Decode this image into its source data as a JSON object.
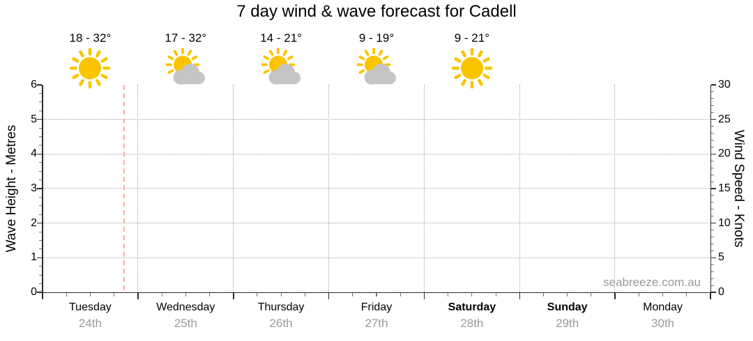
{
  "watermark": "seabreeze.com.au",
  "chart_data": {
    "type": "line",
    "title": "7 day wind & wave forecast for Cadell",
    "location": "Cadell",
    "days": [
      {
        "name": "Tuesday",
        "date": "24th",
        "weekend": false
      },
      {
        "name": "Wednesday",
        "date": "25th",
        "weekend": false
      },
      {
        "name": "Thursday",
        "date": "26th",
        "weekend": false
      },
      {
        "name": "Friday",
        "date": "27th",
        "weekend": false
      },
      {
        "name": "Saturday",
        "date": "28th",
        "weekend": true
      },
      {
        "name": "Sunday",
        "date": "29th",
        "weekend": true
      },
      {
        "name": "Monday",
        "date": "30th",
        "weekend": false
      }
    ],
    "forecast_header": [
      {
        "day": "Tuesday",
        "temp_range": "18 - 32°",
        "icon": "sunny-icon"
      },
      {
        "day": "Wednesday",
        "temp_range": "17 - 32°",
        "icon": "partly-cloudy-icon"
      },
      {
        "day": "Thursday",
        "temp_range": "14 - 21°",
        "icon": "partly-cloudy-icon"
      },
      {
        "day": "Friday",
        "temp_range": "9 - 19°",
        "icon": "partly-cloudy-icon"
      },
      {
        "day": "Saturday",
        "temp_range": "9 - 21°",
        "icon": "sunny-icon"
      }
    ],
    "left_axis": {
      "label": "Wave Height - Metres",
      "min": 0,
      "max": 6,
      "major_ticks": [
        0,
        1,
        2,
        3,
        4,
        5,
        6
      ],
      "minor_step": 0.25
    },
    "right_axis": {
      "label": "Wind Speed - Knots",
      "min": 0,
      "max": 30,
      "major_ticks": [
        0,
        5,
        10,
        15,
        20,
        25,
        30
      ],
      "minor_step": 1
    },
    "x_axis": {
      "days": 7,
      "minor_ticks_per_day": 4
    },
    "series": [],
    "grid": {
      "horizontal_at": [
        1,
        2,
        3,
        4,
        5
      ],
      "vertical_at_day_boundaries": [
        1,
        2,
        3,
        4,
        5,
        6
      ]
    },
    "now_marker": {
      "day_offset": 0.855
    },
    "legend": null
  },
  "colors": {
    "sun": "#FBC400",
    "cloud": "#C5C5C5",
    "grid": "#A3A3A3",
    "axis": "#2A2A2A",
    "minor_tick": "#777777",
    "now_line": "#F8ABA5",
    "muted_text": "#9A9A9A",
    "text": "#000000"
  }
}
